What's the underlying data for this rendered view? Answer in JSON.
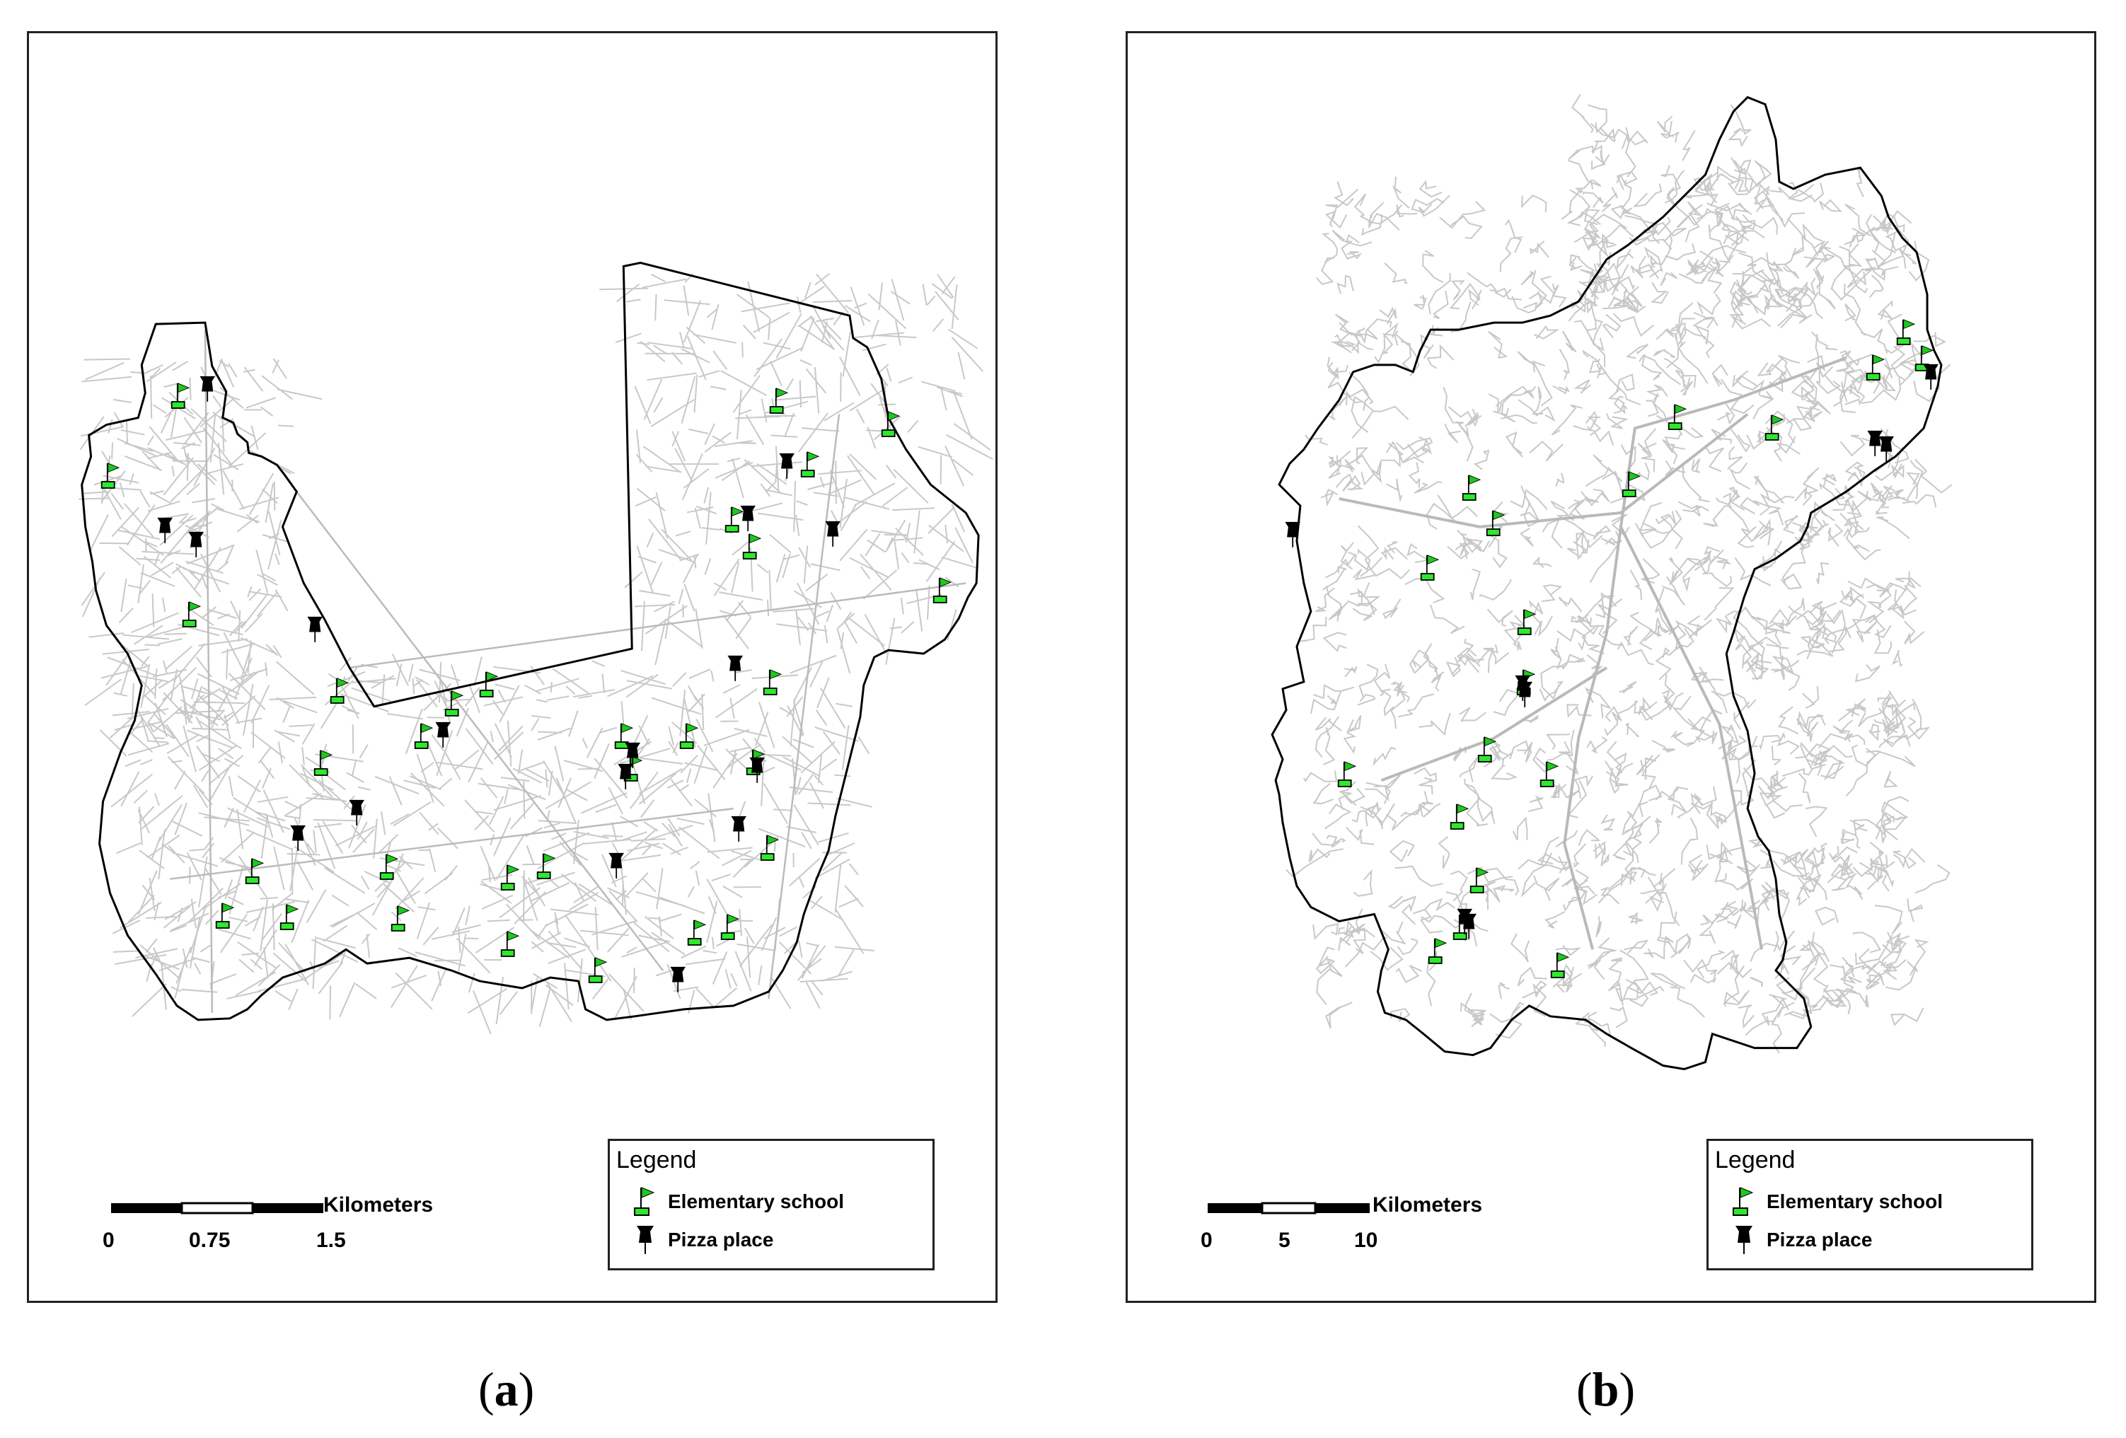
{
  "panels": {
    "a": {
      "caption_open": "(",
      "caption_letter": "a",
      "caption_close": ")",
      "legend": {
        "title": "Legend",
        "school_label": "Elementary school",
        "pizza_label": "Pizza place"
      },
      "scalebar": {
        "unit": "Kilometers",
        "ticks": [
          "0",
          "0.75",
          "1.5"
        ]
      }
    },
    "b": {
      "caption_open": "(",
      "caption_letter": "b",
      "caption_close": ")",
      "legend": {
        "title": "Legend",
        "school_label": "Elementary school",
        "pizza_label": "Pizza place"
      },
      "scalebar": {
        "unit": "Kilometers",
        "ticks": [
          "0",
          "5",
          "10"
        ]
      }
    }
  },
  "colors": {
    "school_flag": "#1ec81e",
    "school_base": "#2ee82e",
    "pizza_pin": "#000000",
    "roads": "#c8c8c8",
    "boundary": "#000000"
  },
  "icons": {
    "school": "green-flag-icon",
    "pizza": "black-pushpin-icon"
  }
}
